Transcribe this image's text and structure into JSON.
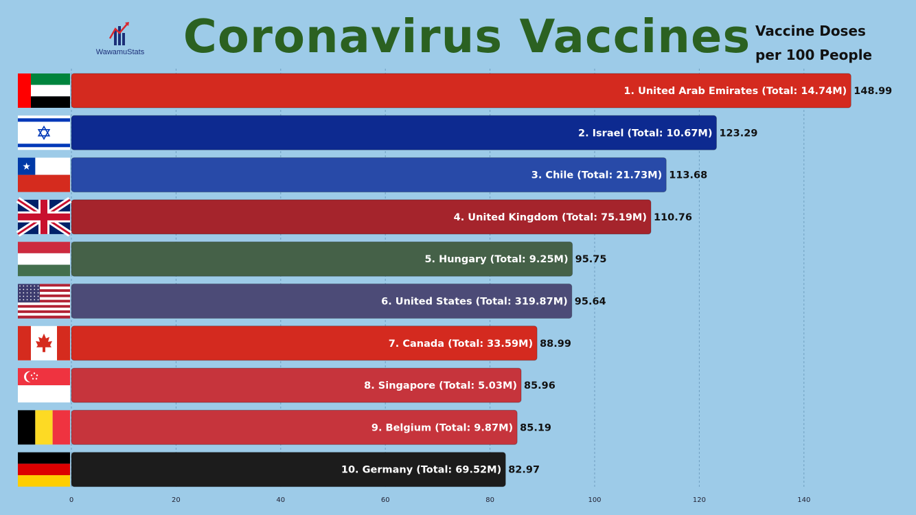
{
  "logo": {
    "name": "WawamuStats"
  },
  "title": "Coronavirus Vaccines",
  "subtitle": [
    "Vaccine Doses",
    "per 100 People"
  ],
  "chart_data": {
    "type": "bar",
    "orientation": "horizontal",
    "title": "Coronavirus Vaccines",
    "subtitle": "Vaccine Doses per 100 People",
    "xlim": [
      0,
      150
    ],
    "xticks": [
      0,
      20,
      40,
      60,
      80,
      100,
      120,
      140
    ],
    "grid": true,
    "categories": [
      "1. United Arab Emirates (Total: 14.74M)",
      "2. Israel (Total: 10.67M)",
      "3. Chile (Total: 21.73M)",
      "4. United Kingdom (Total: 75.19M)",
      "5. Hungary (Total: 9.25M)",
      "6. United States (Total: 319.87M)",
      "7. Canada (Total: 33.59M)",
      "8. Singapore (Total: 5.03M)",
      "9. Belgium (Total: 9.87M)",
      "10. Germany (Total: 69.52M)"
    ],
    "values": [
      148.99,
      123.29,
      113.68,
      110.76,
      95.75,
      95.64,
      88.99,
      85.96,
      85.19,
      82.97
    ],
    "value_labels": [
      "148.99",
      "123.29",
      "113.68",
      "110.76",
      "95.75",
      "95.64",
      "88.99",
      "85.96",
      "85.19",
      "82.97"
    ],
    "colors": [
      "#d42a1f",
      "#0d2a90",
      "#284aa8",
      "#a5242c",
      "#456148",
      "#4c4b77",
      "#d42a1f",
      "#c6343c",
      "#c6343c",
      "#1c1c1c"
    ],
    "flags": [
      "uae-flag",
      "israel-flag",
      "chile-flag",
      "uk-flag",
      "hungary-flag",
      "usa-flag",
      "canada-flag",
      "singapore-flag",
      "belgium-flag",
      "germany-flag"
    ]
  }
}
